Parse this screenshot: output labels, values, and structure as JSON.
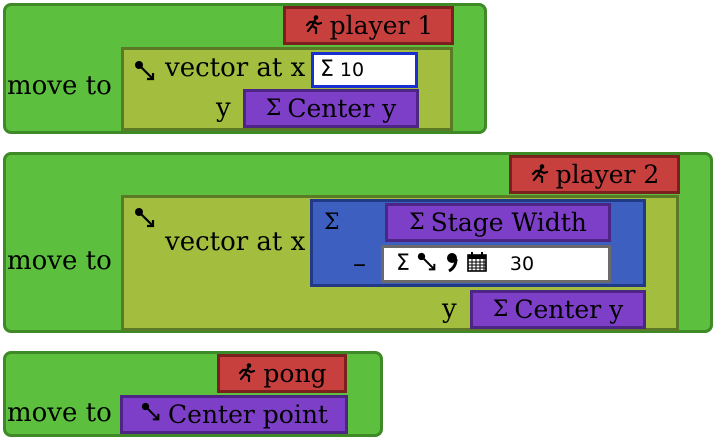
{
  "blocks": [
    {
      "command_label": "move to",
      "object_label": "player 1",
      "vector_label": "vector at x",
      "y_label": "y",
      "x_value": "10",
      "y_variable": "Center y"
    },
    {
      "command_label": "move to",
      "object_label": "player 2",
      "vector_label": "vector at x",
      "y_label": "y",
      "minus_label": "–",
      "x_variable": "Stage Width",
      "x_subtract_value": "30",
      "y_variable": "Center y"
    },
    {
      "command_label": "move to",
      "object_label": "pong",
      "target_variable": "Center point"
    }
  ],
  "icons": {
    "sigma": "Σ",
    "runner": "runner-icon",
    "vector": "vector-icon",
    "comma": "comma-icon",
    "calendar": "calendar-icon"
  },
  "colors": {
    "command_block": "#5cbf3e",
    "vector_block": "#a3be3e",
    "object_tag": "#c8403e",
    "variable_tag": "#7e3fc8",
    "arithmetic_block": "#3d5fc0",
    "focus_border": "#1a2fd0"
  }
}
